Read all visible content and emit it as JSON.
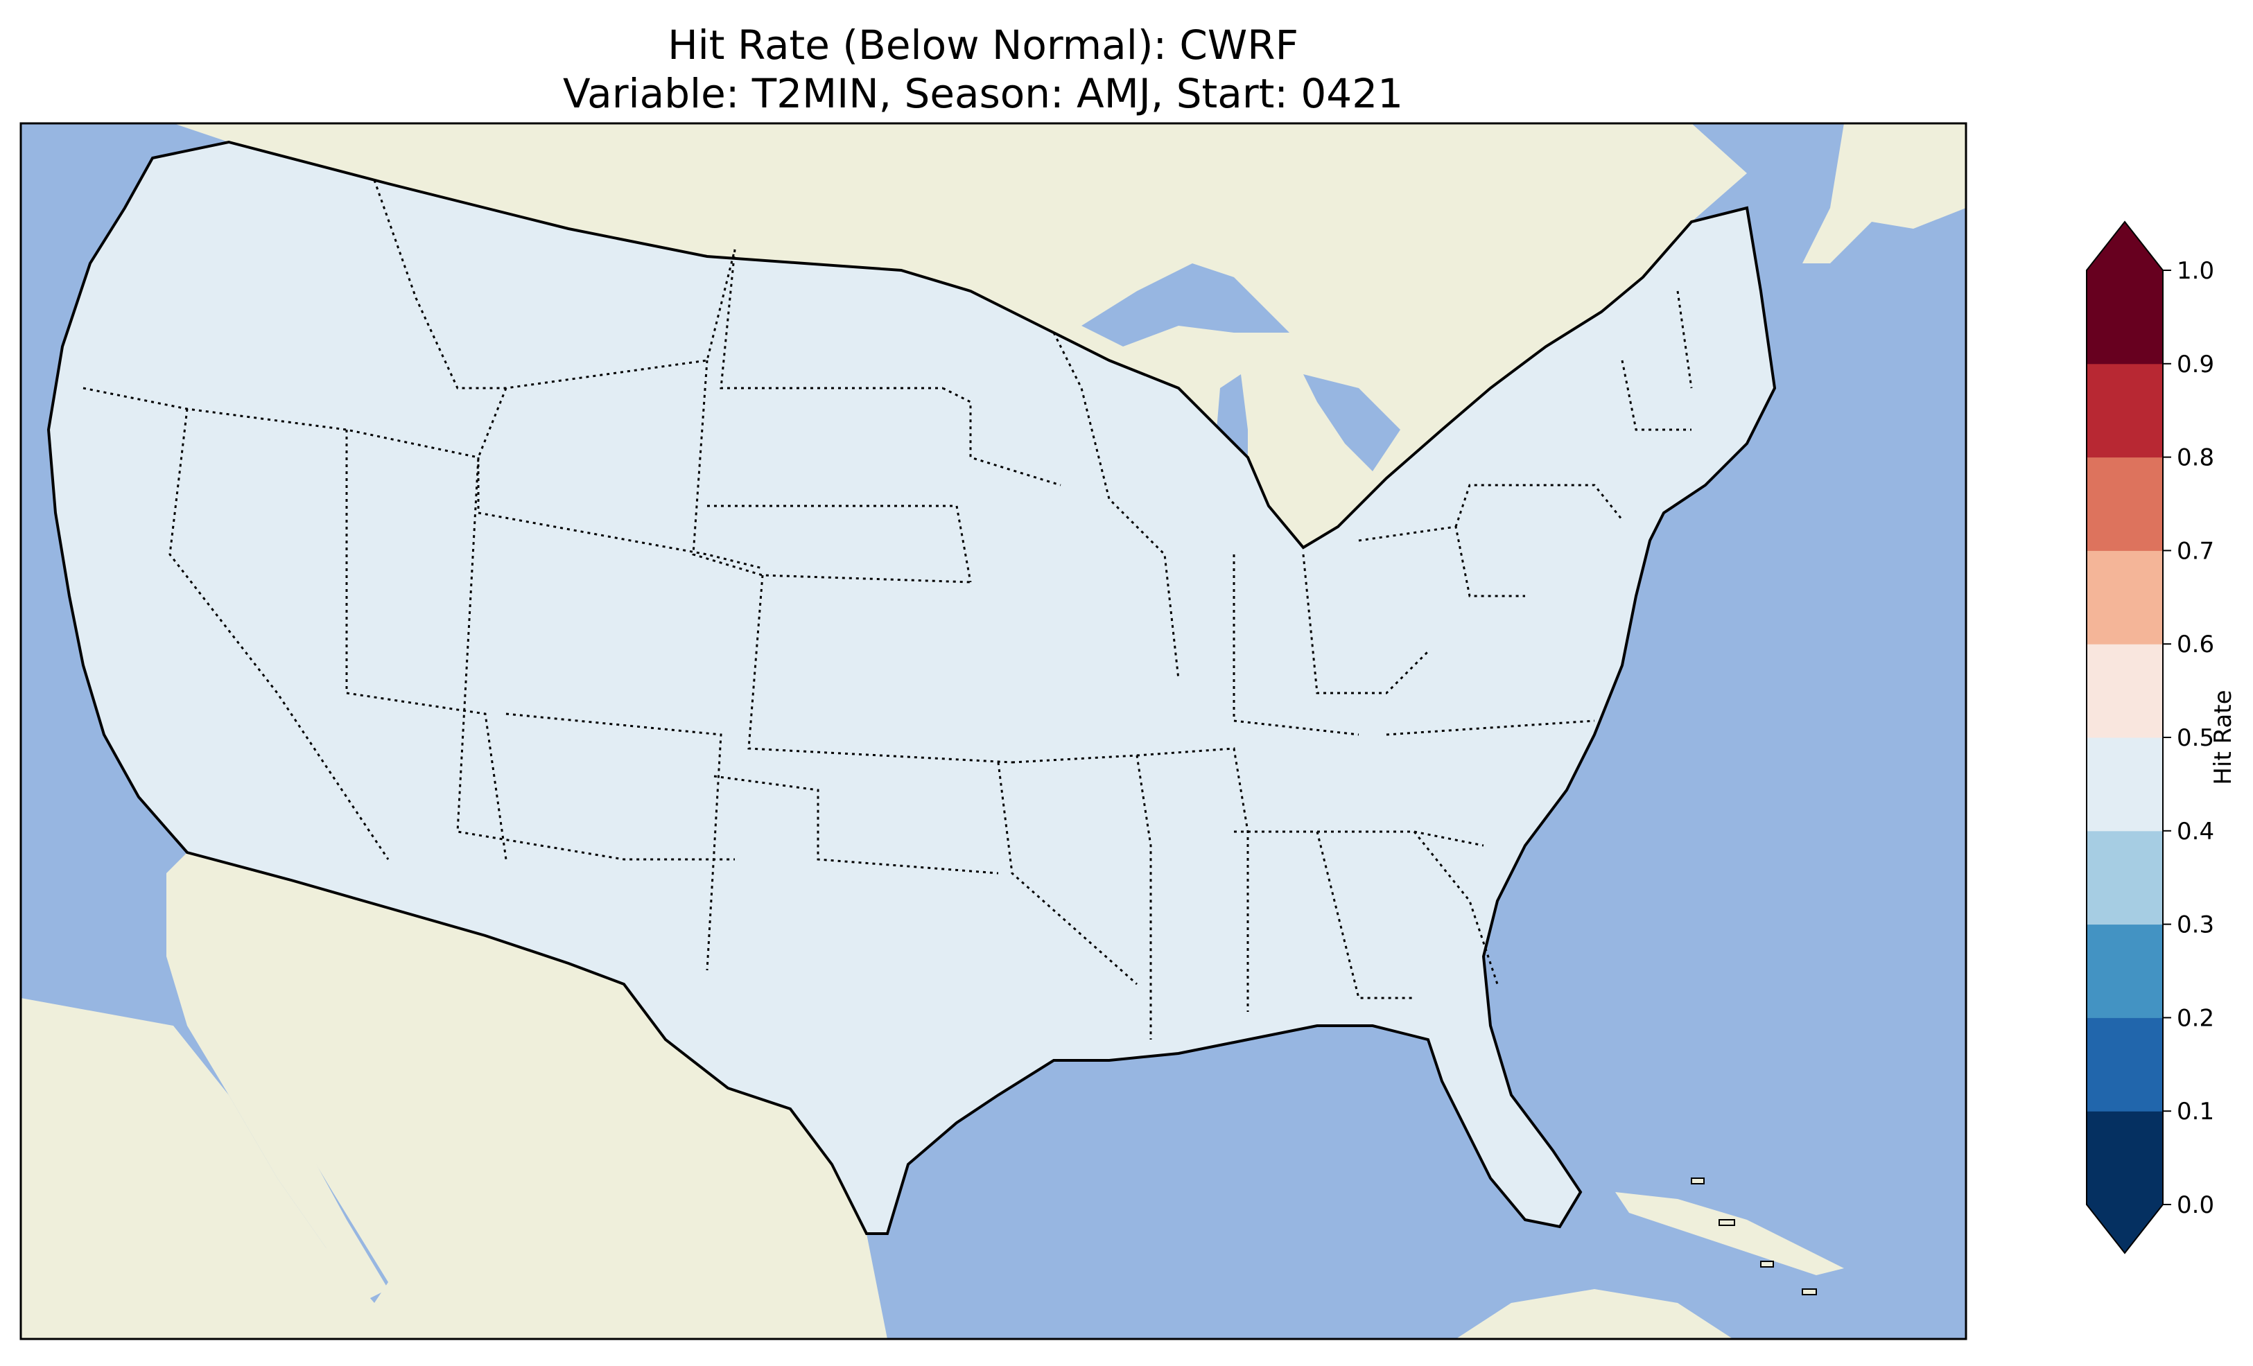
{
  "title": {
    "line1": "Hit Rate (Below Normal): CWRF",
    "line2": "Variable: T2MIN, Season: AMJ, Start: 0421"
  },
  "colors": {
    "ocean": "#97b6e1",
    "land": "#efefdb",
    "coast": "#000000",
    "state_border": "#000000"
  },
  "colorbar": {
    "label": "Hit Rate",
    "ticks": [
      "0.0",
      "0.1",
      "0.2",
      "0.3",
      "0.4",
      "0.5",
      "0.6",
      "0.7",
      "0.8",
      "0.9",
      "1.0"
    ],
    "bins": [
      {
        "min": 0.0,
        "max": 0.1,
        "color": "#053061"
      },
      {
        "min": 0.1,
        "max": 0.2,
        "color": "#2166ac"
      },
      {
        "min": 0.2,
        "max": 0.3,
        "color": "#4393c3"
      },
      {
        "min": 0.3,
        "max": 0.4,
        "color": "#a6cde3"
      },
      {
        "min": 0.4,
        "max": 0.5,
        "color": "#e2edf4"
      },
      {
        "min": 0.5,
        "max": 0.6,
        "color": "#f9e6de"
      },
      {
        "min": 0.6,
        "max": 0.7,
        "color": "#f4b598"
      },
      {
        "min": 0.7,
        "max": 0.8,
        "color": "#dd735d"
      },
      {
        "min": 0.8,
        "max": 0.9,
        "color": "#b82833"
      },
      {
        "min": 0.9,
        "max": 1.0,
        "color": "#67001f"
      }
    ],
    "extend": "both"
  }
}
